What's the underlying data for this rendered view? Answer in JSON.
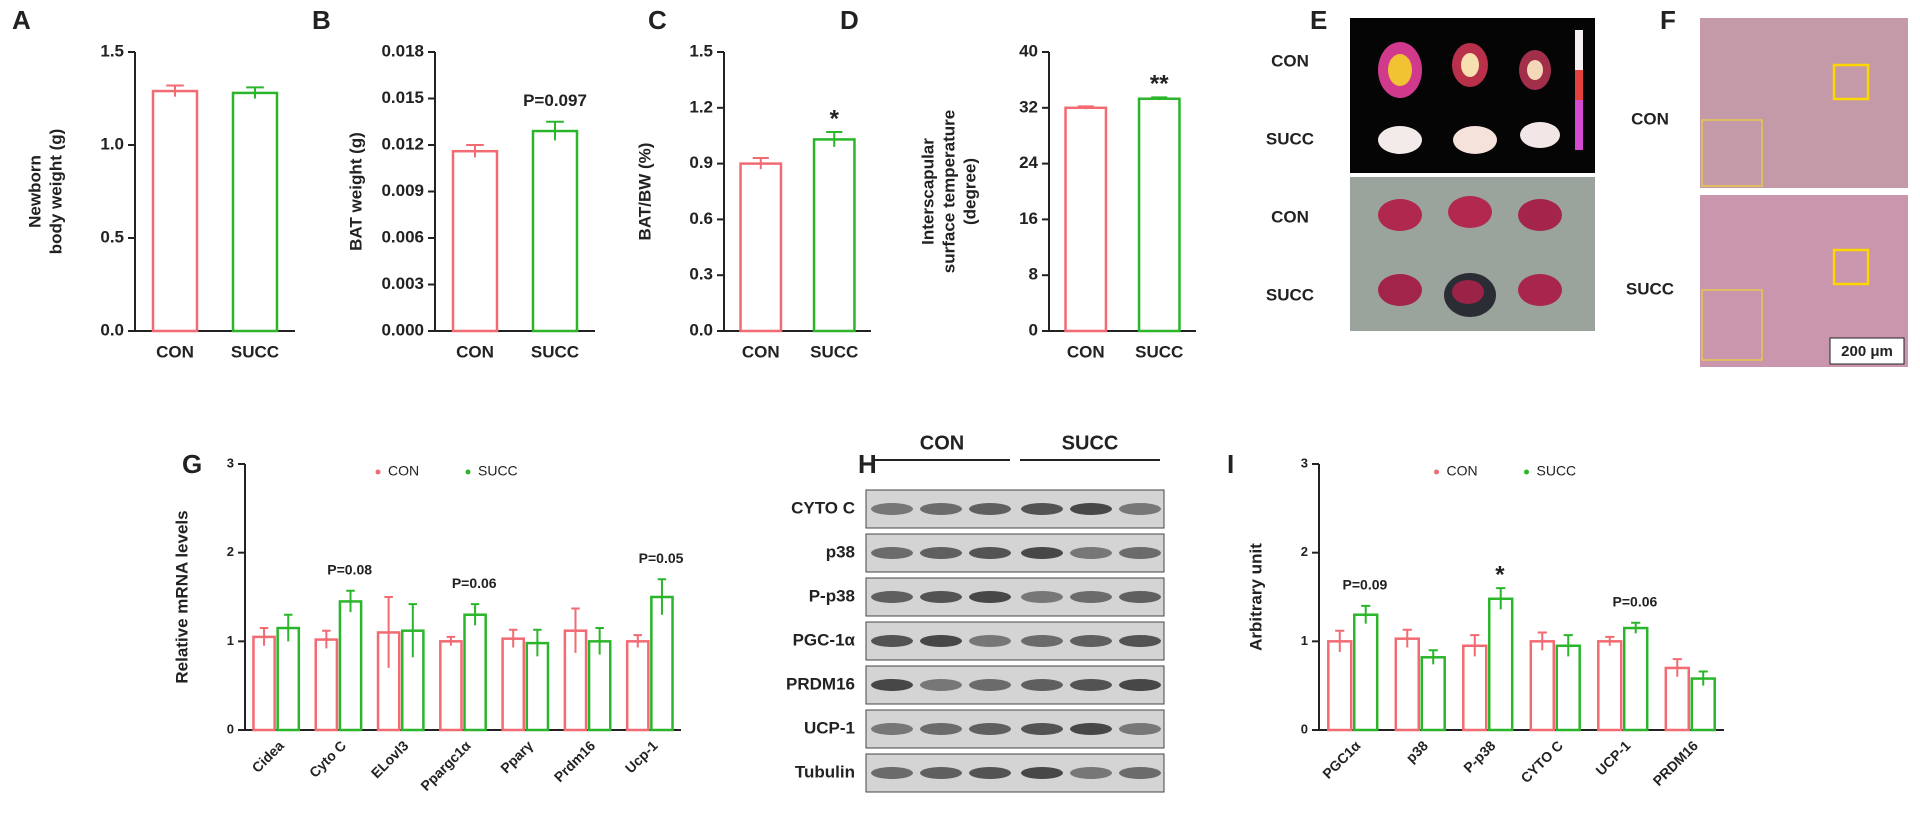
{
  "chart_data": [
    {
      "type": "bar",
      "panel": "A",
      "ylabel": [
        "Newborn",
        "body weight (g)"
      ],
      "categories": [
        "CON",
        "SUCC"
      ],
      "values": [
        1.29,
        1.28
      ],
      "errors": [
        0.03,
        0.03
      ],
      "colors": [
        "#f26a72",
        "#2bb52b"
      ],
      "ylim": [
        0,
        1.5
      ],
      "yticks": [
        {
          "value": 0,
          "label": "0.0"
        },
        0.5,
        {
          "value": 1,
          "label": "1.0"
        },
        1.5
      ],
      "annotations": []
    },
    {
      "type": "bar",
      "panel": "B",
      "ylabel": [
        "BAT weight (g)"
      ],
      "categories": [
        "CON",
        "SUCC"
      ],
      "values": [
        0.0116,
        0.0129
      ],
      "errors": [
        0.0004,
        0.0006
      ],
      "colors": [
        "#f26a72",
        "#2bb52b"
      ],
      "ylim": [
        0,
        0.018
      ],
      "yticks": [
        {
          "value": 0,
          "label": "0.000"
        },
        0.003,
        0.006,
        0.009,
        0.012,
        0.015,
        0.018
      ],
      "annotations": [
        {
          "text": "P=0.097",
          "index": 1
        }
      ]
    },
    {
      "type": "bar",
      "panel": "C",
      "ylabel": [
        "BAT/BW (%)"
      ],
      "categories": [
        "CON",
        "SUCC"
      ],
      "values": [
        0.9,
        1.03
      ],
      "errors": [
        0.03,
        0.04
      ],
      "colors": [
        "#f26a72",
        "#2bb52b"
      ],
      "ylim": [
        0,
        1.5
      ],
      "yticks": [
        {
          "value": 0,
          "label": "0.0"
        },
        0.3,
        0.6,
        0.9,
        1.2,
        1.5
      ],
      "annotations": [
        {
          "text": "*",
          "index": 1
        }
      ]
    },
    {
      "type": "bar",
      "panel": "D",
      "ylabel": [
        "Interscapular",
        "surface temperature",
        "(degree)"
      ],
      "categories": [
        "CON",
        "SUCC"
      ],
      "values": [
        32,
        33.3
      ],
      "errors": [
        0.2,
        0.2
      ],
      "colors": [
        "#f26a72",
        "#2bb52b"
      ],
      "ylim": [
        0,
        40
      ],
      "yticks": [
        0,
        8,
        16,
        24,
        32,
        40
      ],
      "annotations": [
        {
          "text": "**",
          "index": 1
        }
      ]
    },
    {
      "type": "grouped_bar",
      "panel": "G",
      "ylabel": [
        "Relative mRNA levels"
      ],
      "categories": [
        "Cidea",
        "Cyto C",
        "ELovl3",
        "Ppargc1α",
        "Pparγ",
        "Prdm16",
        "Ucp-1"
      ],
      "series": [
        {
          "name": "CON",
          "color": "#f26a72",
          "values": [
            1.05,
            1.02,
            1.1,
            1.0,
            1.03,
            1.12,
            1.0
          ],
          "errors": [
            0.1,
            0.1,
            0.4,
            0.05,
            0.1,
            0.25,
            0.07
          ]
        },
        {
          "name": "SUCC",
          "color": "#2bb52b",
          "values": [
            1.15,
            1.45,
            1.12,
            1.3,
            0.98,
            1.0,
            1.5
          ],
          "errors": [
            0.15,
            0.12,
            0.3,
            0.12,
            0.15,
            0.15,
            0.2
          ]
        }
      ],
      "ylim": [
        0,
        3
      ],
      "yticks": [
        0,
        1,
        2,
        3
      ],
      "annotations": [
        {
          "text": "P=0.08",
          "index": 1
        },
        {
          "text": "P=0.06",
          "index": 3
        },
        {
          "text": "P=0.05",
          "index": 6
        }
      ]
    },
    {
      "type": "grouped_bar",
      "panel": "I",
      "ylabel": [
        "Arbitrary unit"
      ],
      "categories": [
        "PGC1α",
        "p38",
        "P-p38",
        "CYTO C",
        "UCP-1",
        "PRDM16"
      ],
      "series": [
        {
          "name": "CON",
          "color": "#f26a72",
          "values": [
            1.0,
            1.03,
            0.95,
            1.0,
            1.0,
            0.7
          ],
          "errors": [
            0.12,
            0.1,
            0.12,
            0.1,
            0.05,
            0.1
          ]
        },
        {
          "name": "SUCC",
          "color": "#2bb52b",
          "values": [
            1.3,
            0.82,
            1.48,
            0.95,
            1.15,
            0.58
          ],
          "errors": [
            0.1,
            0.08,
            0.12,
            0.12,
            0.06,
            0.08
          ]
        }
      ],
      "ylim": [
        0,
        3
      ],
      "yticks": [
        0,
        1,
        2,
        3
      ],
      "annotations": [
        {
          "text": "P=0.09",
          "index": 0
        },
        {
          "text": "*",
          "index": 2
        },
        {
          "text": "P=0.06",
          "index": 4
        }
      ]
    }
  ],
  "images": {
    "E": {
      "panel": "E",
      "rows": [
        "CON",
        "SUCC",
        "CON",
        "SUCC"
      ]
    },
    "F": {
      "panel": "F",
      "rows": [
        "CON",
        "SUCC"
      ],
      "scale": "200 μm"
    },
    "H": {
      "panel": "H",
      "groups": [
        "CON",
        "SUCC"
      ],
      "rows": [
        "CYTO C",
        "p38",
        "P-p38",
        "PGC-1α",
        "PRDM16",
        "UCP-1",
        "Tubulin"
      ]
    }
  }
}
